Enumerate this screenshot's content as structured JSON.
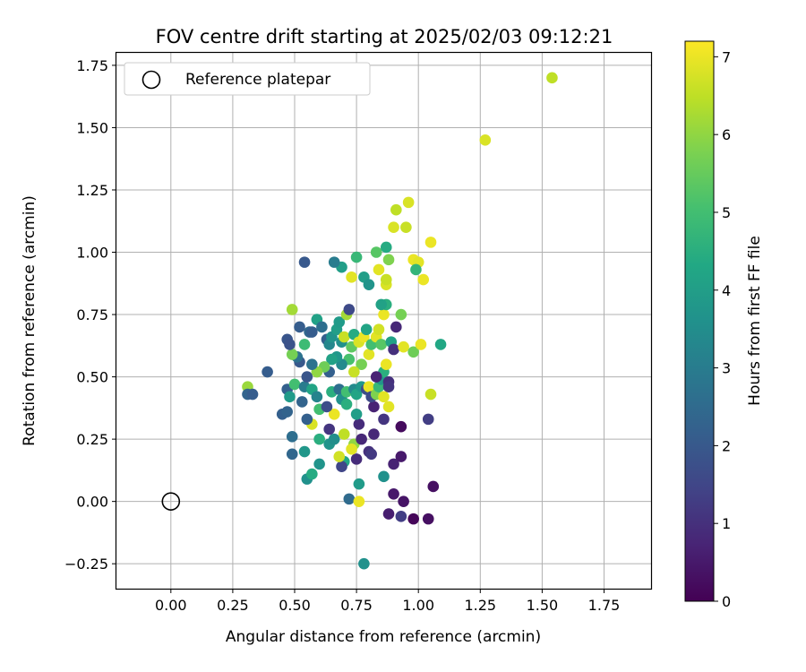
{
  "chart_data": {
    "type": "scatter",
    "title": "FOV centre drift starting at 2025/02/03 09:12:21",
    "xlabel": "Angular distance from reference (arcmin)",
    "ylabel": "Rotation from reference (arcmin)",
    "xlim": [
      -0.22,
      1.94
    ],
    "ylim": [
      -0.35,
      1.8
    ],
    "xticks": [
      0.0,
      0.25,
      0.5,
      0.75,
      1.0,
      1.25,
      1.5,
      1.75
    ],
    "xtick_labels": [
      "0.00",
      "0.25",
      "0.50",
      "0.75",
      "1.00",
      "1.25",
      "1.50",
      "1.75"
    ],
    "yticks": [
      -0.25,
      0.0,
      0.25,
      0.5,
      0.75,
      1.0,
      1.25,
      1.5,
      1.75
    ],
    "ytick_labels": [
      "−0.25",
      "0.00",
      "0.25",
      "0.50",
      "0.75",
      "1.00",
      "1.25",
      "1.50",
      "1.75"
    ],
    "grid": true,
    "legend": {
      "label": "Reference platepar",
      "placement": "top-left"
    },
    "reference_point": {
      "x": 0.0,
      "y": 0.0
    },
    "colorbar": {
      "label": "Hours from first FF file",
      "min": 0,
      "max": 7.2,
      "ticks": [
        0,
        1,
        2,
        3,
        4,
        5,
        6,
        7
      ],
      "tick_labels": [
        "0",
        "1",
        "2",
        "3",
        "4",
        "5",
        "6",
        "7"
      ],
      "colormap": "viridis"
    },
    "points": [
      [
        0.98,
        -0.07,
        0.1
      ],
      [
        1.04,
        -0.07,
        0.3
      ],
      [
        0.88,
        -0.05,
        0.6
      ],
      [
        0.93,
        -0.06,
        1.3
      ],
      [
        0.9,
        0.03,
        0.5
      ],
      [
        0.94,
        0.0,
        0.4
      ],
      [
        1.06,
        0.06,
        0.3
      ],
      [
        0.78,
        -0.25,
        3.6
      ],
      [
        0.72,
        0.01,
        2.5
      ],
      [
        0.76,
        0.07,
        3.9
      ],
      [
        0.76,
        0.0,
        7.0
      ],
      [
        0.86,
        0.1,
        3.6
      ],
      [
        0.9,
        0.15,
        0.7
      ],
      [
        0.93,
        0.18,
        0.5
      ],
      [
        0.8,
        0.2,
        1.0
      ],
      [
        0.81,
        0.19,
        1.2
      ],
      [
        0.75,
        0.17,
        0.9
      ],
      [
        0.7,
        0.16,
        4.3
      ],
      [
        0.69,
        0.14,
        1.5
      ],
      [
        0.68,
        0.18,
        6.7
      ],
      [
        0.6,
        0.15,
        3.7
      ],
      [
        0.55,
        0.09,
        3.6
      ],
      [
        0.57,
        0.11,
        4.4
      ],
      [
        0.49,
        0.19,
        2.4
      ],
      [
        0.54,
        0.2,
        3.8
      ],
      [
        0.64,
        0.23,
        3.7
      ],
      [
        0.66,
        0.25,
        3.5
      ],
      [
        0.7,
        0.27,
        6.5
      ],
      [
        0.74,
        0.23,
        6.0
      ],
      [
        0.73,
        0.21,
        6.9
      ],
      [
        0.77,
        0.25,
        0.8
      ],
      [
        0.82,
        0.27,
        0.8
      ],
      [
        0.76,
        0.31,
        0.9
      ],
      [
        0.86,
        0.33,
        1.1
      ],
      [
        0.93,
        0.3,
        0.2
      ],
      [
        1.04,
        0.33,
        1.3
      ],
      [
        1.05,
        0.43,
        6.6
      ],
      [
        0.88,
        0.38,
        6.9
      ],
      [
        0.82,
        0.38,
        0.7
      ],
      [
        0.75,
        0.35,
        4.0
      ],
      [
        0.66,
        0.35,
        7.0
      ],
      [
        0.64,
        0.29,
        1.1
      ],
      [
        0.6,
        0.25,
        4.5
      ],
      [
        0.57,
        0.31,
        6.8
      ],
      [
        0.55,
        0.33,
        2.2
      ],
      [
        0.49,
        0.26,
        2.6
      ],
      [
        0.45,
        0.35,
        2.2
      ],
      [
        0.47,
        0.36,
        2.3
      ],
      [
        0.31,
        0.46,
        6.1
      ],
      [
        0.31,
        0.43,
        2.3
      ],
      [
        0.33,
        0.43,
        2.1
      ],
      [
        0.39,
        0.52,
        2.1
      ],
      [
        0.47,
        0.45,
        2.2
      ],
      [
        0.48,
        0.42,
        3.9
      ],
      [
        0.5,
        0.47,
        5.0
      ],
      [
        0.53,
        0.4,
        2.3
      ],
      [
        0.54,
        0.46,
        3.0
      ],
      [
        0.57,
        0.45,
        4.2
      ],
      [
        0.59,
        0.42,
        3.2
      ],
      [
        0.6,
        0.37,
        5.0
      ],
      [
        0.63,
        0.38,
        1.7
      ],
      [
        0.65,
        0.44,
        4.5
      ],
      [
        0.68,
        0.45,
        2.6
      ],
      [
        0.69,
        0.41,
        3.6
      ],
      [
        0.71,
        0.39,
        4.5
      ],
      [
        0.71,
        0.44,
        5.0
      ],
      [
        0.74,
        0.45,
        3.4
      ],
      [
        0.75,
        0.43,
        4.2
      ],
      [
        0.77,
        0.46,
        3.8
      ],
      [
        0.79,
        0.45,
        1.7
      ],
      [
        0.8,
        0.46,
        7.0
      ],
      [
        0.81,
        0.42,
        1.6
      ],
      [
        0.83,
        0.43,
        5.8
      ],
      [
        0.84,
        0.46,
        4.8
      ],
      [
        0.85,
        0.49,
        3.8
      ],
      [
        0.86,
        0.42,
        6.9
      ],
      [
        0.86,
        0.52,
        4.5
      ],
      [
        0.88,
        0.48,
        1.0
      ],
      [
        0.87,
        0.55,
        7.0
      ],
      [
        0.88,
        0.46,
        1.1
      ],
      [
        0.83,
        0.5,
        0.7
      ],
      [
        0.8,
        0.59,
        6.9
      ],
      [
        0.77,
        0.55,
        5.7
      ],
      [
        0.74,
        0.52,
        6.6
      ],
      [
        0.72,
        0.57,
        5.1
      ],
      [
        0.69,
        0.55,
        3.4
      ],
      [
        0.67,
        0.58,
        3.8
      ],
      [
        0.65,
        0.57,
        4.1
      ],
      [
        0.64,
        0.52,
        2.2
      ],
      [
        0.62,
        0.54,
        5.6
      ],
      [
        0.59,
        0.52,
        6.0
      ],
      [
        0.57,
        0.55,
        2.7
      ],
      [
        0.55,
        0.5,
        1.9
      ],
      [
        0.52,
        0.56,
        2.0
      ],
      [
        0.51,
        0.58,
        2.7
      ],
      [
        0.49,
        0.59,
        5.7
      ],
      [
        0.47,
        0.65,
        1.9
      ],
      [
        0.48,
        0.63,
        1.8
      ],
      [
        0.52,
        0.7,
        2.1
      ],
      [
        0.54,
        0.63,
        4.9
      ],
      [
        0.56,
        0.68,
        2.4
      ],
      [
        0.57,
        0.68,
        2.1
      ],
      [
        0.59,
        0.73,
        4.1
      ],
      [
        0.61,
        0.7,
        2.6
      ],
      [
        0.63,
        0.65,
        2.2
      ],
      [
        0.64,
        0.63,
        3.3
      ],
      [
        0.65,
        0.66,
        3.7
      ],
      [
        0.67,
        0.69,
        4.0
      ],
      [
        0.68,
        0.72,
        3.9
      ],
      [
        0.69,
        0.64,
        3.6
      ],
      [
        0.7,
        0.66,
        6.6
      ],
      [
        0.71,
        0.75,
        6.2
      ],
      [
        0.72,
        0.77,
        1.6
      ],
      [
        0.73,
        0.62,
        5.4
      ],
      [
        0.74,
        0.67,
        4.4
      ],
      [
        0.76,
        0.64,
        6.8
      ],
      [
        0.78,
        0.66,
        7.0
      ],
      [
        0.79,
        0.69,
        4.2
      ],
      [
        0.81,
        0.63,
        5.0
      ],
      [
        0.83,
        0.66,
        6.9
      ],
      [
        0.84,
        0.69,
        6.7
      ],
      [
        0.85,
        0.63,
        5.3
      ],
      [
        0.86,
        0.75,
        7.0
      ],
      [
        0.87,
        0.79,
        4.5
      ],
      [
        0.89,
        0.64,
        4.1
      ],
      [
        0.9,
        0.61,
        1.0
      ],
      [
        0.91,
        0.7,
        0.8
      ],
      [
        0.93,
        0.75,
        5.7
      ],
      [
        0.94,
        0.62,
        6.9
      ],
      [
        0.98,
        0.6,
        5.6
      ],
      [
        1.01,
        0.63,
        7.0
      ],
      [
        1.09,
        0.63,
        4.3
      ],
      [
        0.85,
        0.79,
        4.1
      ],
      [
        0.73,
        0.9,
        6.9
      ],
      [
        0.78,
        0.9,
        4.0
      ],
      [
        0.8,
        0.87,
        3.7
      ],
      [
        0.87,
        0.87,
        6.8
      ],
      [
        0.87,
        0.89,
        6.6
      ],
      [
        0.84,
        0.93,
        6.9
      ],
      [
        0.88,
        0.97,
        5.8
      ],
      [
        0.83,
        1.0,
        5.3
      ],
      [
        0.87,
        1.02,
        4.4
      ],
      [
        0.69,
        0.94,
        4.0
      ],
      [
        0.66,
        0.96,
        3.0
      ],
      [
        0.54,
        0.96,
        2.0
      ],
      [
        0.75,
        0.98,
        4.8
      ],
      [
        0.98,
        0.97,
        7.0
      ],
      [
        1.0,
        0.96,
        6.9
      ],
      [
        0.99,
        0.93,
        4.7
      ],
      [
        1.02,
        0.89,
        7.0
      ],
      [
        1.05,
        1.04,
        7.0
      ],
      [
        0.9,
        1.1,
        6.8
      ],
      [
        0.95,
        1.1,
        6.6
      ],
      [
        0.91,
        1.17,
        6.5
      ],
      [
        0.96,
        1.2,
        6.8
      ],
      [
        1.27,
        1.45,
        6.8
      ],
      [
        1.54,
        1.7,
        6.5
      ],
      [
        0.49,
        0.77,
        6.2
      ]
    ]
  }
}
